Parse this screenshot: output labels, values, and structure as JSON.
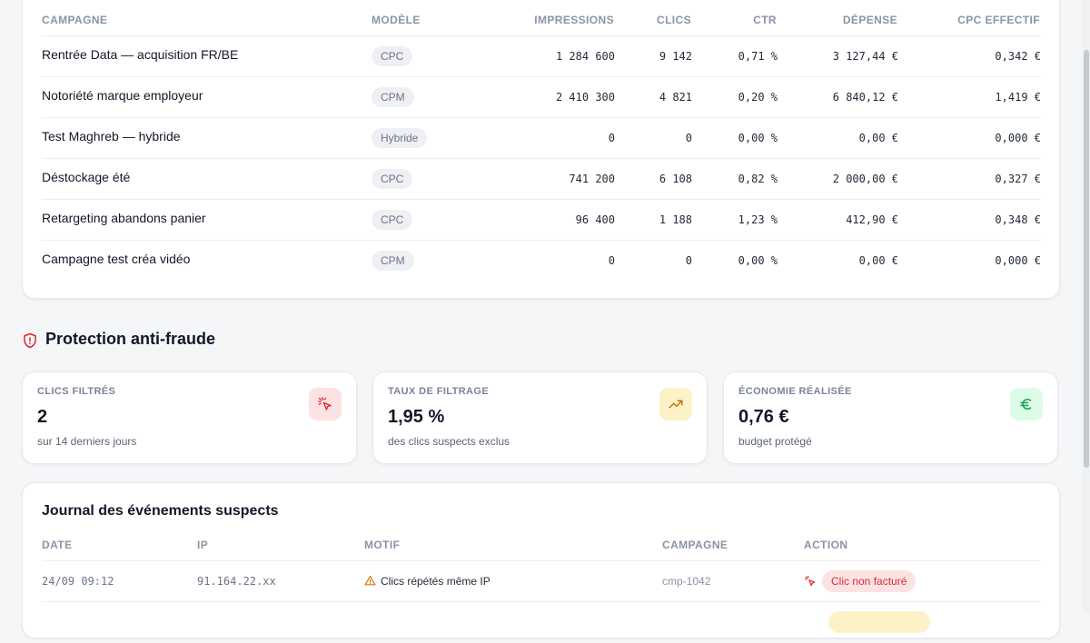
{
  "campaigns": {
    "headers": {
      "campagne": "CAMPAGNE",
      "modele": "MODÈLE",
      "impressions": "IMPRESSIONS",
      "clics": "CLICS",
      "ctr": "CTR",
      "depense": "DÉPENSE",
      "cpc": "CPC EFFECTIF"
    },
    "rows": [
      {
        "name": "Rentrée Data — acquisition FR/BE",
        "model": "CPC",
        "impressions": "1 284 600",
        "clics": "9 142",
        "ctr": "0,71 %",
        "depense": "3 127,44 €",
        "cpc": "0,342 €"
      },
      {
        "name": "Notoriété marque employeur",
        "model": "CPM",
        "impressions": "2 410 300",
        "clics": "4 821",
        "ctr": "0,20 %",
        "depense": "6 840,12 €",
        "cpc": "1,419 €"
      },
      {
        "name": "Test Maghreb — hybride",
        "model": "Hybride",
        "impressions": "0",
        "clics": "0",
        "ctr": "0,00 %",
        "depense": "0,00 €",
        "cpc": "0,000 €"
      },
      {
        "name": "Déstockage été",
        "model": "CPC",
        "impressions": "741 200",
        "clics": "6 108",
        "ctr": "0,82 %",
        "depense": "2 000,00 €",
        "cpc": "0,327 €"
      },
      {
        "name": "Retargeting abandons panier",
        "model": "CPC",
        "impressions": "96 400",
        "clics": "1 188",
        "ctr": "1,23 %",
        "depense": "412,90 €",
        "cpc": "0,348 €"
      },
      {
        "name": "Campagne test créa vidéo",
        "model": "CPM",
        "impressions": "0",
        "clics": "0",
        "ctr": "0,00 %",
        "depense": "0,00 €",
        "cpc": "0,000 €"
      }
    ]
  },
  "fraud": {
    "title": "Protection anti-fraude",
    "stats": [
      {
        "label": "CLICS FILTRÉS",
        "value": "2",
        "sub": "sur 14 derniers jours",
        "icon": "cursor-click-icon",
        "color": "#dc2626",
        "bg": "#fde2e4"
      },
      {
        "label": "TAUX DE FILTRAGE",
        "value": "1,95 %",
        "sub": "des clics suspects exclus",
        "icon": "trending-up-icon",
        "color": "#c2730a",
        "bg": "#fdf1c7"
      },
      {
        "label": "ÉCONOMIE RÉALISÉE",
        "value": "0,76 €",
        "sub": "budget protégé",
        "icon": "euro-icon",
        "color": "#16a34a",
        "bg": "#dcfce7"
      }
    ]
  },
  "journal": {
    "title": "Journal des événements suspects",
    "headers": {
      "date": "DATE",
      "ip": "IP",
      "motif": "MOTIF",
      "campagne": "CAMPAGNE",
      "action": "ACTION"
    },
    "rows": [
      {
        "date": "24/09 09:12",
        "ip": "91.164.22.xx",
        "motif": "Clics répétés même IP",
        "campagne": "cmp-1042",
        "action": "Clic non facturé"
      }
    ]
  }
}
